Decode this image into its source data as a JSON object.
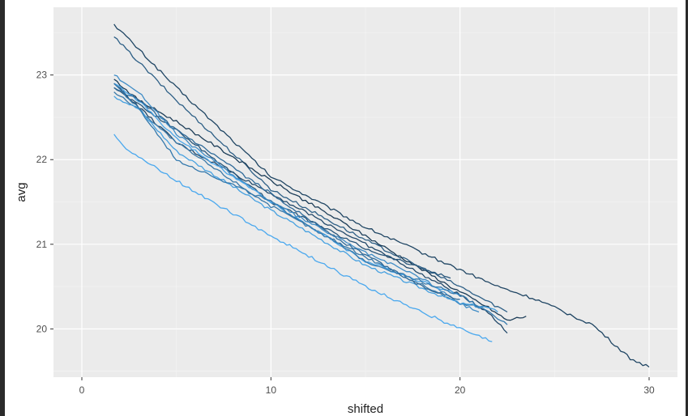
{
  "chart_data": {
    "type": "line",
    "title": "",
    "xlabel": "shifted",
    "ylabel": "avg",
    "xlim": [
      -1.5,
      31.5
    ],
    "ylim": [
      19.43,
      23.8
    ],
    "x_ticks": [
      0,
      10,
      20,
      30
    ],
    "y_ticks": [
      20,
      21,
      22,
      23
    ],
    "grid": true,
    "legend": "none",
    "colors": {
      "panel_background": "#ebebeb",
      "grid_major": "#ffffff",
      "grid_minor": "#f5f5f5",
      "series_dark": "#132b43",
      "series_light": "#56b1f7"
    },
    "series": [
      {
        "color": "#1f4563",
        "x": [
          1.7,
          5,
          10,
          15,
          20,
          22,
          24,
          26,
          27,
          28,
          29,
          30
        ],
        "y": [
          23.6,
          22.85,
          21.8,
          21.2,
          20.7,
          20.5,
          20.35,
          20.15,
          20.05,
          19.85,
          19.65,
          19.55
        ]
      },
      {
        "color": "#2d5f86",
        "x": [
          1.7,
          5,
          10,
          15,
          20,
          22.5
        ],
        "y": [
          23.45,
          22.7,
          21.65,
          21.05,
          20.5,
          20.2
        ]
      },
      {
        "color": "#1c3d58",
        "x": [
          1.7,
          3,
          5,
          10,
          15,
          19.5,
          21.5,
          22.5,
          23.5
        ],
        "y": [
          22.95,
          22.7,
          22.45,
          21.75,
          21.1,
          20.5,
          20.25,
          20.1,
          20.15
        ]
      },
      {
        "color": "#23496a",
        "x": [
          1.7,
          5,
          10,
          15,
          20,
          21.5,
          22.5
        ],
        "y": [
          22.9,
          22.2,
          21.6,
          21.0,
          20.4,
          20.2,
          19.95
        ]
      },
      {
        "color": "#27557a",
        "x": [
          1.7,
          3,
          5,
          10,
          15,
          19.5
        ],
        "y": [
          22.85,
          22.65,
          22.35,
          21.5,
          20.95,
          20.6
        ]
      },
      {
        "color": "#3a79a8",
        "x": [
          1.7,
          3,
          5,
          10,
          15,
          20,
          21.5
        ],
        "y": [
          22.8,
          22.6,
          22.2,
          21.45,
          20.85,
          20.3,
          20.25
        ]
      },
      {
        "color": "#45a0e0",
        "x": [
          1.7,
          3,
          5,
          10,
          15,
          20,
          21.5,
          22
        ],
        "y": [
          22.75,
          22.6,
          22.1,
          21.4,
          20.75,
          20.3,
          20.25,
          20.2
        ]
      },
      {
        "color": "#3f8cc6",
        "x": [
          1.7,
          3,
          5,
          10,
          15,
          18,
          20,
          21
        ],
        "y": [
          23.0,
          22.8,
          22.3,
          21.5,
          20.9,
          20.6,
          20.3,
          20.2
        ]
      },
      {
        "color": "#4aa5e8",
        "x": [
          1.7,
          3,
          5,
          10,
          15,
          20
        ],
        "y": [
          22.9,
          22.7,
          22.25,
          21.5,
          20.8,
          20.4
        ]
      },
      {
        "color": "#3479ad",
        "x": [
          1.7,
          3,
          5,
          10,
          15,
          20,
          22.5
        ],
        "y": [
          22.9,
          22.6,
          22.0,
          21.5,
          20.8,
          20.4,
          20.05
        ]
      },
      {
        "color": "#2f6a99",
        "x": [
          1.7,
          3,
          5,
          10,
          14,
          18,
          20
        ],
        "y": [
          22.85,
          22.7,
          22.35,
          21.6,
          21.0,
          20.5,
          20.35
        ]
      },
      {
        "color": "#4aa8ee",
        "x": [
          1.7,
          2.5,
          5,
          10,
          15,
          19,
          20.5,
          21.7
        ],
        "y": [
          22.3,
          22.1,
          21.75,
          21.1,
          20.5,
          20.1,
          19.95,
          19.85
        ]
      }
    ]
  }
}
